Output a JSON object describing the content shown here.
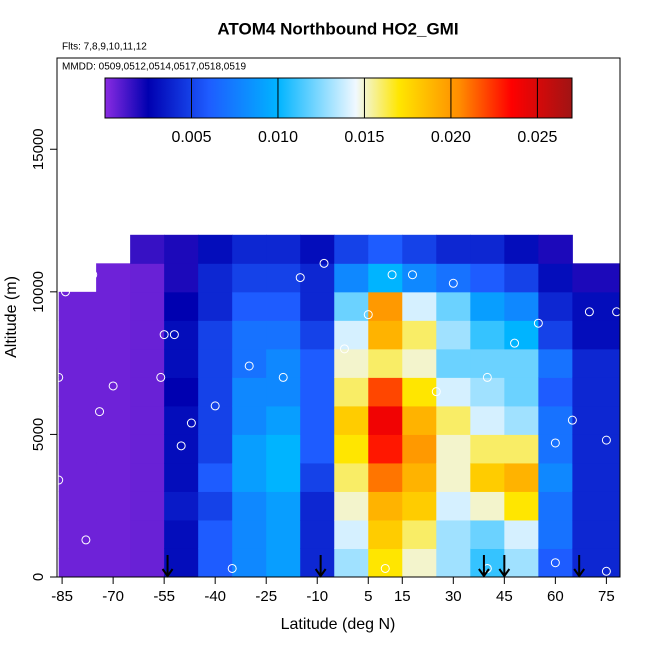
{
  "chart_data": {
    "type": "heatmap",
    "title": "ATOM4 Northbound HO2_GMI",
    "annotations": [
      "Flts: 7,8,9,10,11,12",
      "MMDD: 0509,0512,0514,0517,0518,0519"
    ],
    "xlabel": "Latitude (deg N)",
    "ylabel": "Altitude (m)",
    "xlim": [
      -86.5,
      79
    ],
    "ylim": [
      0,
      18200
    ],
    "xticks": [
      -85,
      -70,
      -55,
      -40,
      -25,
      -10,
      5,
      15,
      30,
      45,
      60,
      75
    ],
    "yticks": [
      0,
      5000,
      10000,
      15000
    ],
    "x_edges": [
      -86,
      -75,
      -65,
      -55,
      -45,
      -35,
      -25,
      -15,
      -5,
      5,
      15,
      25,
      35,
      45,
      55,
      65,
      79
    ],
    "y_edges": [
      0,
      1000,
      2000,
      3000,
      4000,
      5000,
      6000,
      7000,
      8000,
      9000,
      10000,
      11000,
      12000
    ],
    "z": [
      [
        0.0005,
        0.0005,
        0.0005,
        0.0005,
        0.0005,
        0.0005,
        0.0005,
        0.0005,
        0.0005,
        0.0005,
        null,
        null
      ],
      [
        0.0005,
        0.0005,
        0.0005,
        0.0005,
        0.0005,
        0.0005,
        0.0005,
        0.0005,
        0.0005,
        0.0005,
        0.0005,
        null
      ],
      [
        0.0006,
        0.0006,
        0.0006,
        0.0006,
        0.0006,
        0.0006,
        0.0006,
        0.0006,
        0.0006,
        0.0006,
        0.0006,
        0.0015
      ],
      [
        0.003,
        0.003,
        0.0035,
        0.003,
        0.003,
        0.003,
        0.0025,
        0.003,
        0.003,
        0.0025,
        0.002,
        0.002
      ],
      [
        0.006,
        0.006,
        0.005,
        0.006,
        0.005,
        0.005,
        0.005,
        0.005,
        0.005,
        0.004,
        0.004,
        0.003
      ],
      [
        0.008,
        0.008,
        0.008,
        0.009,
        0.009,
        0.008,
        0.008,
        0.007,
        0.007,
        0.006,
        0.005,
        0.004
      ],
      [
        0.009,
        0.009,
        0.009,
        0.01,
        0.01,
        0.009,
        0.008,
        0.008,
        0.007,
        0.006,
        0.005,
        0.004
      ],
      [
        0.004,
        0.004,
        0.004,
        0.005,
        0.006,
        0.006,
        0.006,
        0.006,
        0.005,
        0.004,
        0.004,
        0.003
      ],
      [
        0.013,
        0.014,
        0.015,
        0.016,
        0.017,
        0.018,
        0.016,
        0.015,
        0.014,
        0.012,
        0.008,
        0.005
      ],
      [
        0.017,
        0.018,
        0.019,
        0.021,
        0.023,
        0.024,
        0.022,
        0.016,
        0.019,
        0.02,
        0.01,
        0.006
      ],
      [
        0.015,
        0.016,
        0.018,
        0.019,
        0.02,
        0.019,
        0.017,
        0.015,
        0.016,
        0.014,
        0.008,
        0.005
      ],
      [
        0.013,
        0.013,
        0.014,
        0.015,
        0.015,
        0.016,
        0.014,
        0.012,
        0.013,
        0.012,
        0.007,
        0.004
      ],
      [
        0.011,
        0.012,
        0.015,
        0.018,
        0.016,
        0.014,
        0.013,
        0.012,
        0.011,
        0.009,
        0.006,
        0.004
      ],
      [
        0.013,
        0.014,
        0.017,
        0.019,
        0.016,
        0.013,
        0.012,
        0.012,
        0.01,
        0.008,
        0.005,
        0.003
      ],
      [
        0.006,
        0.007,
        0.007,
        0.008,
        0.007,
        0.007,
        0.006,
        0.007,
        0.005,
        0.004,
        0.003,
        0.002
      ],
      [
        0.004,
        0.004,
        0.004,
        0.004,
        0.004,
        0.004,
        0.004,
        0.004,
        0.003,
        0.003,
        0.002,
        null
      ]
    ],
    "clim": [
      0,
      0.027
    ],
    "cticks": [
      0.005,
      {
        "value": 0.01,
        "label": "0.010"
      },
      0.015,
      {
        "value": 0.02,
        "label": "0.020"
      },
      0.025
    ],
    "colorscale": [
      [
        0,
        "#8a2be2"
      ],
      [
        0.0025,
        "#0000b0"
      ],
      [
        0.006,
        "#1e5cff"
      ],
      [
        0.01,
        "#00b4ff"
      ],
      [
        0.0145,
        "#f0f8ff"
      ],
      [
        0.017,
        "#ffe600"
      ],
      [
        0.0205,
        "#ff8c00"
      ],
      [
        0.0235,
        "#ff0000"
      ],
      [
        0.027,
        "#a01414"
      ]
    ],
    "points": {
      "x": [
        -84,
        -80,
        -76,
        -70,
        -74,
        -86,
        -86,
        -78,
        -55,
        -52,
        -56,
        -50,
        -47,
        -40,
        -30,
        -20,
        -15,
        -8,
        -2,
        5,
        12,
        18,
        25,
        30,
        40,
        48,
        55,
        60,
        65,
        70,
        75,
        78,
        -35,
        10,
        40,
        60,
        75
      ],
      "y": [
        10000,
        10500,
        10600,
        6700,
        5800,
        7000,
        3400,
        1300,
        8500,
        8500,
        7000,
        4600,
        5400,
        6000,
        7400,
        7000,
        10500,
        11000,
        8000,
        9200,
        10600,
        10600,
        6500,
        10300,
        7000,
        8200,
        8900,
        4700,
        5500,
        9300,
        4800,
        9300,
        300,
        300,
        300,
        500,
        200
      ]
    },
    "markers": {
      "x": [
        -54,
        -9,
        39,
        45,
        67
      ]
    }
  }
}
